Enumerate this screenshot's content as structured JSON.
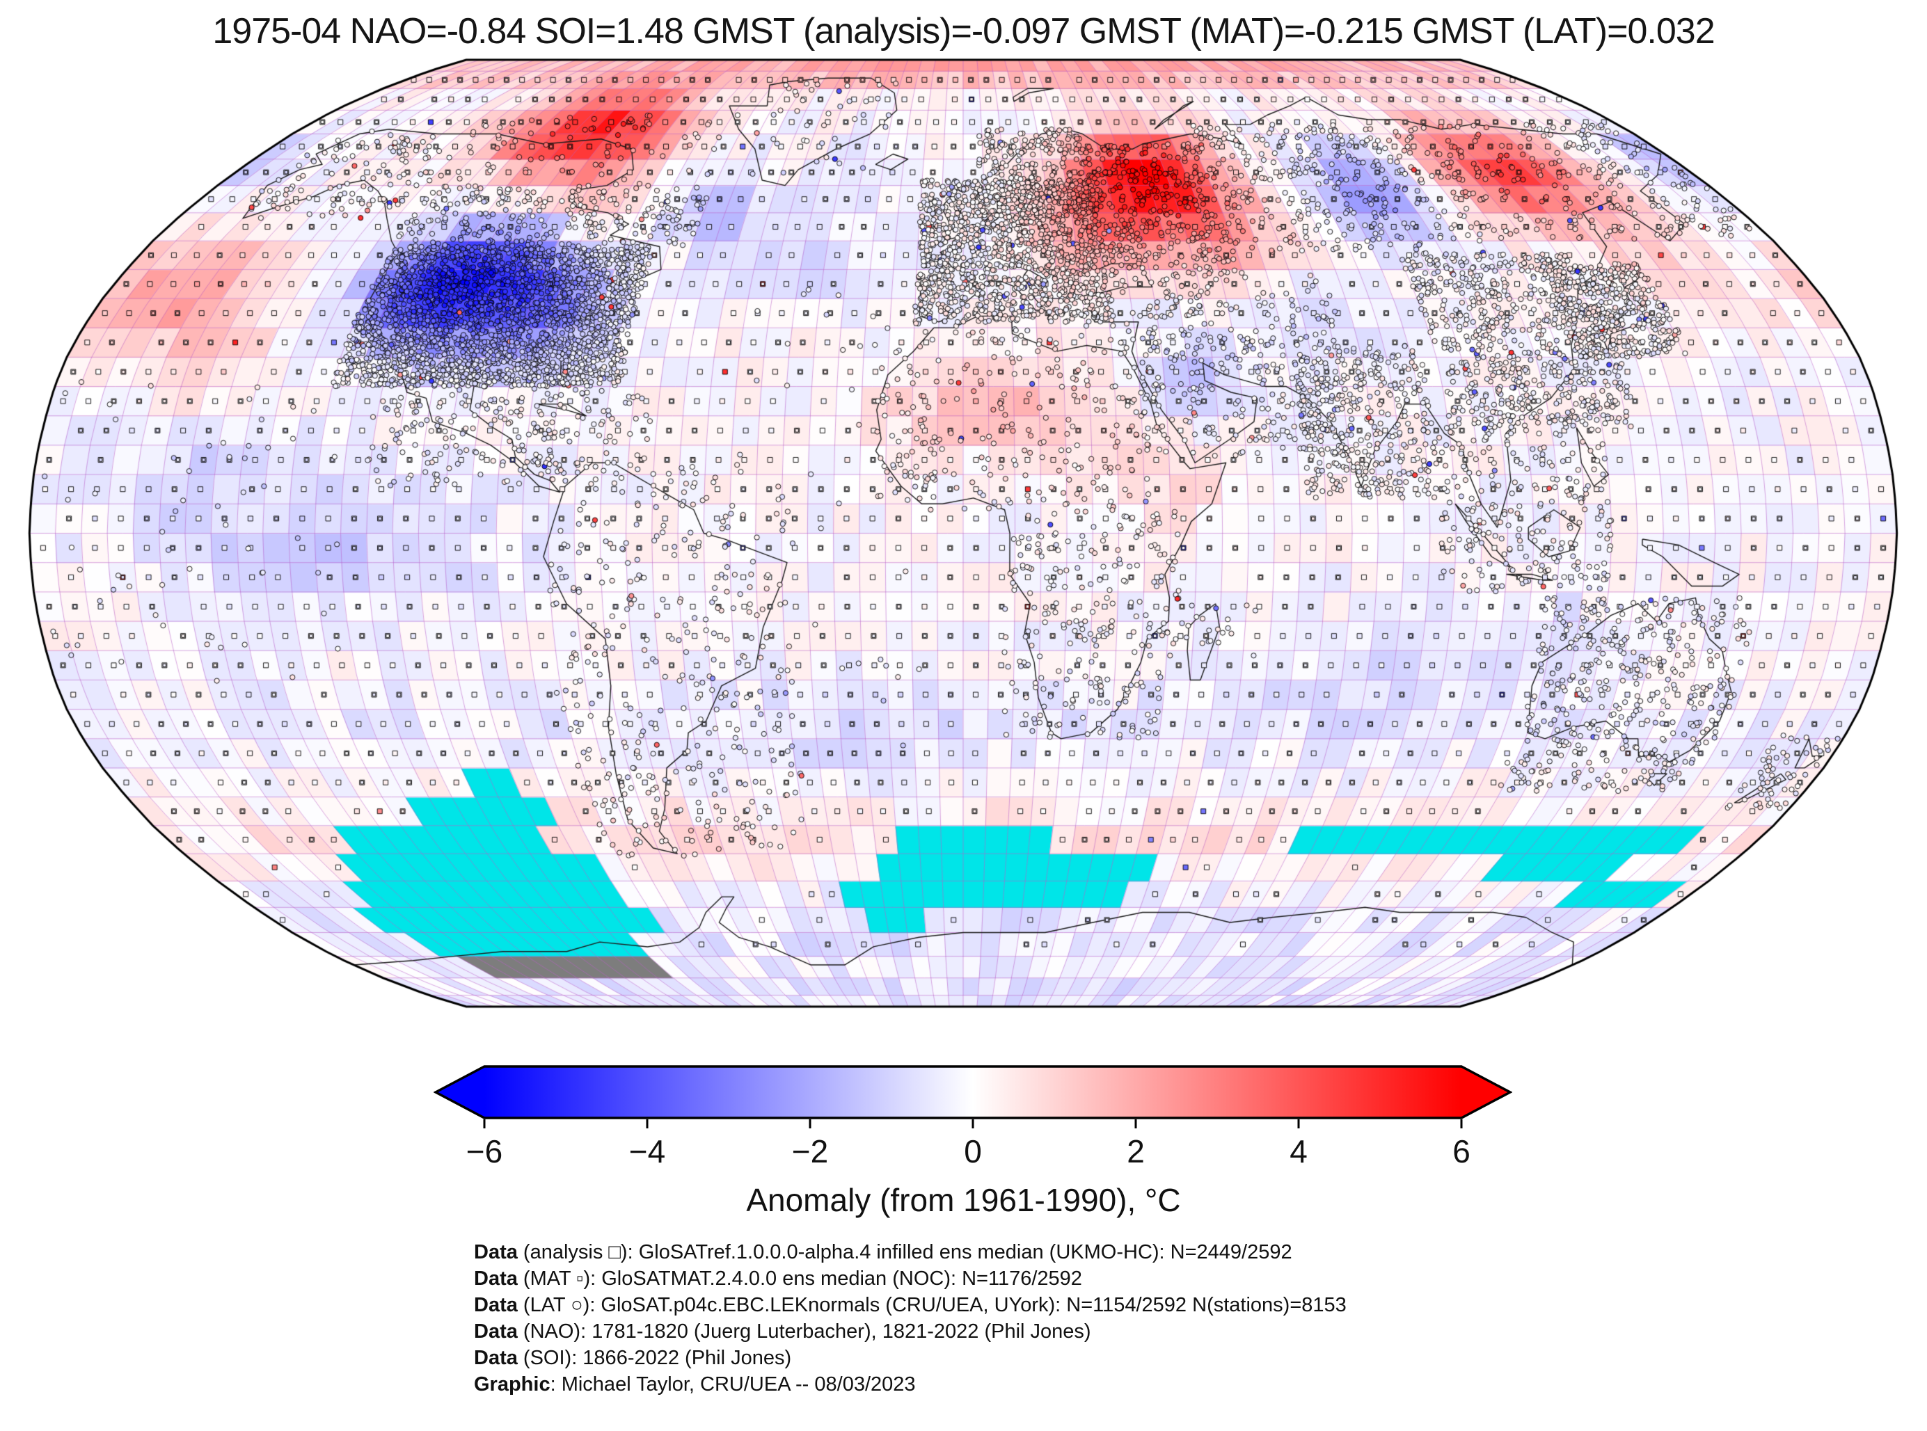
{
  "title": "1975-04 NAO=-0.84 SOI=1.48 GMST (analysis)=-0.097 GMST (MAT)=-0.215 GMST (LAT)=0.032",
  "colorbar": {
    "label": "Anomaly (from 1961-1990), °C",
    "ticks": [
      "−6",
      "−4",
      "−2",
      "0",
      "2",
      "4",
      "6"
    ],
    "min": -6,
    "max": 6,
    "left_color": "#0000ff",
    "mid_color": "#ffffff",
    "right_color": "#ff0000"
  },
  "credits": {
    "lines": [
      {
        "label": "Data",
        "text": " (analysis □): GloSATref.1.0.0.0-alpha.4 infilled ens median (UKMO-HC): N=2449/2592"
      },
      {
        "label": "Data",
        "text": " (MAT ▫): GloSATMAT.2.4.0.0 ens median (NOC): N=1176/2592"
      },
      {
        "label": "Data",
        "text": " (LAT ○): GloSAT.p04c.EBC.LEKnormals (CRU/UEA, UYork): N=1154/2592 N(stations)=8153"
      },
      {
        "label": "Data",
        "text": " (NAO): 1781-1820 (Juerg Luterbacher), 1821-2022 (Phil Jones)"
      },
      {
        "label": "Data",
        "text": " (SOI): 1866-2022 (Phil Jones)"
      },
      {
        "label": "Graphic",
        "text": ": Michael Taylor, CRU/UEA -- 08/03/2023"
      }
    ]
  },
  "chart_data": {
    "type": "heatmap",
    "subtype": "global-anomaly-map",
    "projection": "robinson",
    "period": "1975-04",
    "baseline": "1961-1990",
    "units": "°C",
    "indices": {
      "NAO": -0.84,
      "SOI": 1.48,
      "GMST_analysis": -0.097,
      "GMST_MAT": -0.215,
      "GMST_LAT": 0.032
    },
    "counts": {
      "analysis": "2449/2592",
      "mat": "1176/2592",
      "lat": "1154/2592",
      "stations": 8153
    },
    "grid_deg": 5,
    "colormap": {
      "name": "bwr",
      "min": -6,
      "max": 6
    },
    "grid_line_color": "rgba(186,95,200,0.55)",
    "coast_color": "#1a1a1a",
    "missing_color": "#00e5e8",
    "masked_color": "#7d7d7d",
    "anomaly_blobs": [
      [
        -100,
        71,
        16,
        6,
        5.2
      ],
      [
        0,
        86,
        200,
        4,
        2.2
      ],
      [
        -92,
        59,
        11,
        6,
        1.2
      ],
      [
        -104,
        43,
        12,
        8,
        -4.6
      ],
      [
        -117,
        41,
        8,
        6,
        -1.8
      ],
      [
        -86,
        38,
        10,
        7,
        -2.2
      ],
      [
        -165,
        41,
        14,
        7,
        2.1
      ],
      [
        -150,
        26,
        12,
        6,
        1.0
      ],
      [
        -57,
        57,
        8,
        5,
        -1.6
      ],
      [
        -35,
        48,
        13,
        6,
        -0.9
      ],
      [
        -22,
        64,
        8,
        5,
        -0.7
      ],
      [
        45,
        61,
        13,
        7,
        6.2
      ],
      [
        28,
        51,
        10,
        6,
        1.8
      ],
      [
        62,
        49,
        10,
        6,
        1.4
      ],
      [
        98,
        59,
        9,
        6,
        -2.6
      ],
      [
        135,
        63,
        13,
        7,
        4.4
      ],
      [
        152,
        46,
        8,
        6,
        0.9
      ],
      [
        178,
        64,
        10,
        5,
        -1.6
      ],
      [
        8,
        22,
        16,
        6,
        1.8
      ],
      [
        36,
        9,
        10,
        6,
        0.9
      ],
      [
        46,
        27,
        9,
        6,
        -1.1
      ],
      [
        72,
        36,
        9,
        6,
        -0.9
      ],
      [
        -120,
        -3,
        28,
        7,
        -1.0
      ],
      [
        -150,
        15,
        20,
        8,
        -0.8
      ],
      [
        80,
        -25,
        20,
        8,
        -0.5
      ],
      [
        -20,
        -35,
        15,
        8,
        -0.5
      ],
      [
        110,
        -15,
        15,
        6,
        -0.5
      ],
      [
        0,
        -52,
        200,
        4,
        0.7
      ],
      [
        0,
        -32,
        200,
        5,
        -0.45
      ],
      [
        0,
        -70,
        200,
        5,
        -0.6
      ],
      [
        0,
        -85,
        200,
        5,
        -0.7
      ]
    ],
    "missing_cells": [
      [
        -105,
        -95,
        -45,
        -40
      ],
      [
        -120,
        -90,
        -50,
        -45
      ],
      [
        -140,
        -95,
        -55,
        -50
      ],
      [
        -145,
        -85,
        -60,
        -55
      ],
      [
        -150,
        -85,
        -65,
        -60
      ],
      [
        -155,
        -80,
        -70,
        -65
      ],
      [
        -150,
        -90,
        -75,
        -70
      ],
      [
        -15,
        20,
        -55,
        -50
      ],
      [
        -20,
        45,
        -60,
        -55
      ],
      [
        -30,
        40,
        -65,
        -60
      ],
      [
        -25,
        -10,
        -70,
        -65
      ],
      [
        75,
        165,
        -55,
        -50
      ],
      [
        125,
        155,
        -60,
        -55
      ],
      [
        150,
        175,
        -65,
        -60
      ]
    ],
    "masked_cells": [
      [
        -145,
        -90,
        -80,
        -75
      ]
    ],
    "station_clusters": [
      [
        -125,
        -68,
        25,
        49,
        2300
      ],
      [
        -127,
        -60,
        49,
        60,
        260
      ],
      [
        -135,
        -62,
        60,
        74,
        80
      ],
      [
        -168,
        -132,
        54,
        71,
        110
      ],
      [
        -116,
        -78,
        8,
        33,
        230
      ],
      [
        -85,
        -59,
        10,
        25,
        70
      ],
      [
        -81,
        -34,
        -56,
        12,
        370
      ],
      [
        -10,
        31,
        36,
        61,
        1350
      ],
      [
        4,
        31,
        55,
        71,
        240
      ],
      [
        31,
        60,
        44,
        68,
        330
      ],
      [
        60,
        110,
        48,
        72,
        290
      ],
      [
        110,
        179,
        50,
        72,
        260
      ],
      [
        33,
        77,
        13,
        44,
        340
      ],
      [
        66,
        92,
        6,
        32,
        370
      ],
      [
        95,
        132,
        18,
        48,
        680
      ],
      [
        124,
        146,
        30,
        46,
        400
      ],
      [
        92,
        125,
        -10,
        18,
        240
      ],
      [
        113,
        154,
        -44,
        -11,
        400
      ],
      [
        166,
        179,
        -47,
        -34,
        60
      ],
      [
        -17,
        40,
        4,
        36,
        270
      ],
      [
        8,
        42,
        -35,
        4,
        250
      ],
      [
        -56,
        -20,
        59,
        82,
        40
      ],
      [
        -180,
        -120,
        -28,
        28,
        60
      ],
      [
        -45,
        -8,
        -40,
        42,
        40
      ],
      [
        42,
        58,
        -21,
        -12,
        20
      ]
    ],
    "markers": {
      "analysis": {
        "glyph": "square",
        "size": 7
      },
      "mat": {
        "glyph": "square",
        "size": 4.5
      },
      "lat": {
        "glyph": "circle",
        "size": 7.2
      }
    }
  }
}
